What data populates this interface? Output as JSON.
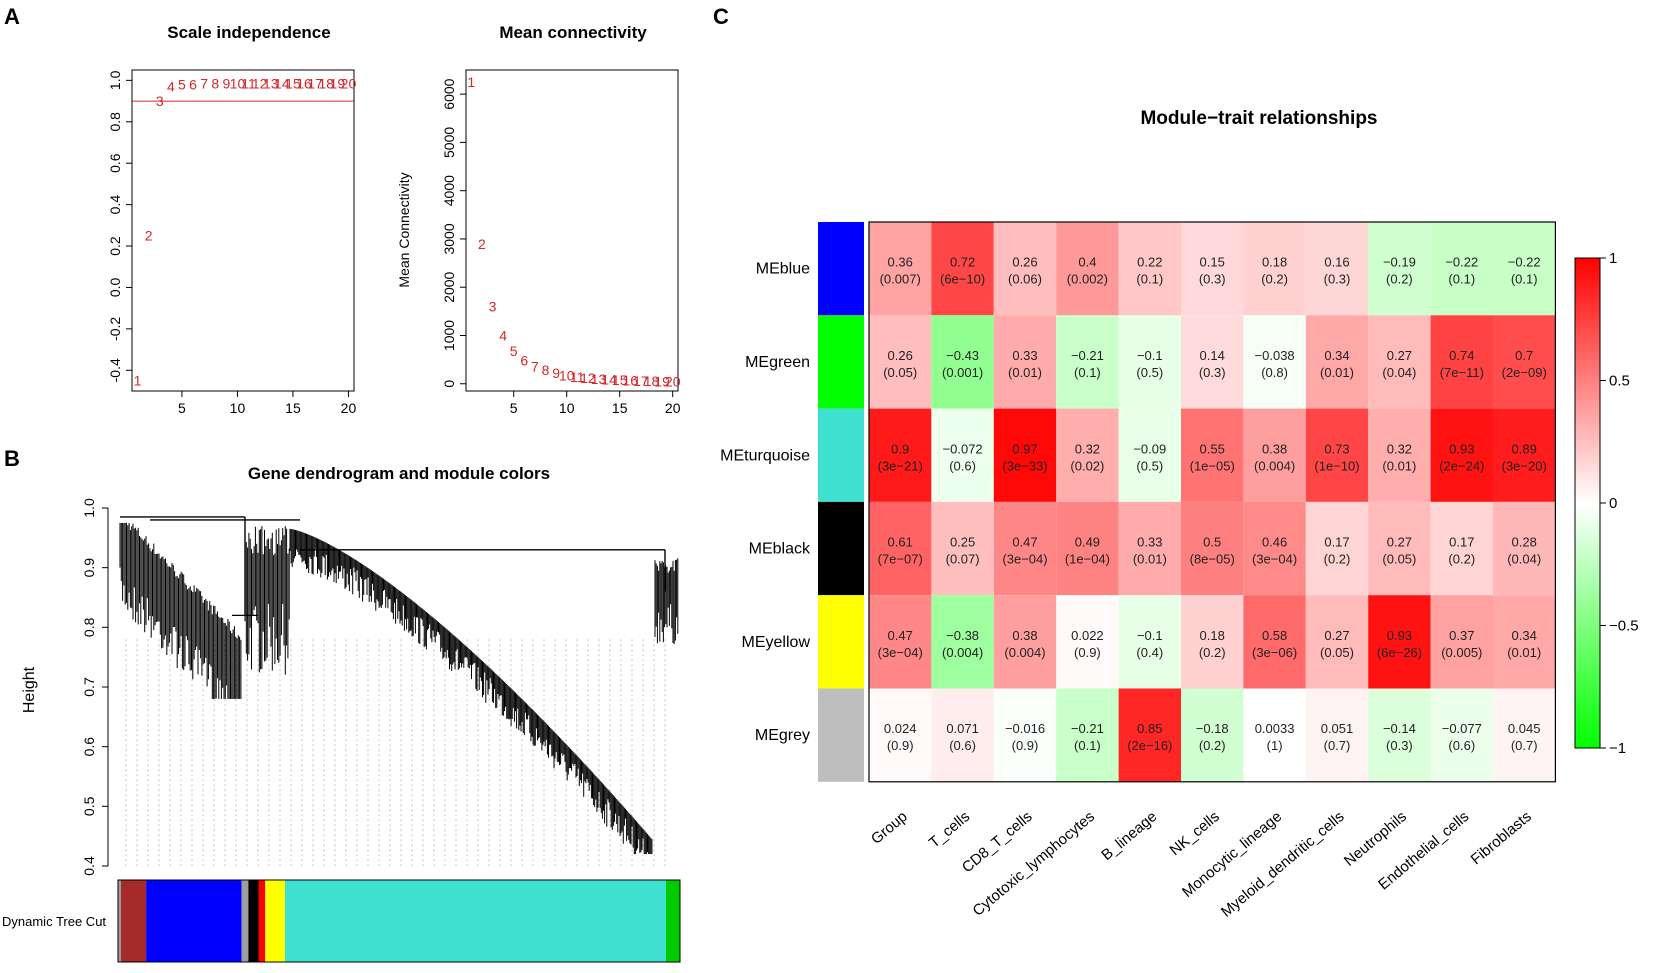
{
  "panels": {
    "a": "A",
    "b": "B",
    "c": "C"
  },
  "chart_data": [
    {
      "id": "scale_independence",
      "type": "scatter",
      "title": "Scale independence",
      "xlabel": "",
      "ylabel": "",
      "xlim": [
        0.5,
        20.5
      ],
      "ylim": [
        -0.5,
        1.05
      ],
      "x_ticks": [
        "5",
        "10",
        "15",
        "20"
      ],
      "y_ticks": [
        "-0.4",
        "-0.2",
        "0.0",
        "0.2",
        "0.4",
        "0.6",
        "0.8",
        "1.0"
      ],
      "x_tick_values": [
        5,
        10,
        15,
        20
      ],
      "y_tick_values": [
        -0.4,
        -0.2,
        0,
        0.2,
        0.4,
        0.6,
        0.8,
        1.0
      ],
      "threshold": 0.9,
      "points": [
        {
          "x": 1,
          "y": -0.45,
          "label": "1"
        },
        {
          "x": 2,
          "y": 0.25,
          "label": "2"
        },
        {
          "x": 3,
          "y": 0.9,
          "label": "3"
        },
        {
          "x": 4,
          "y": 0.97,
          "label": "4"
        },
        {
          "x": 5,
          "y": 0.98,
          "label": "5"
        },
        {
          "x": 6,
          "y": 0.98,
          "label": "6"
        },
        {
          "x": 7,
          "y": 0.985,
          "label": "7"
        },
        {
          "x": 8,
          "y": 0.985,
          "label": "8"
        },
        {
          "x": 9,
          "y": 0.985,
          "label": "9"
        },
        {
          "x": 10,
          "y": 0.985,
          "label": "10"
        },
        {
          "x": 11,
          "y": 0.985,
          "label": "11"
        },
        {
          "x": 12,
          "y": 0.985,
          "label": "12"
        },
        {
          "x": 13,
          "y": 0.985,
          "label": "13"
        },
        {
          "x": 14,
          "y": 0.985,
          "label": "14"
        },
        {
          "x": 15,
          "y": 0.985,
          "label": "15"
        },
        {
          "x": 16,
          "y": 0.985,
          "label": "16"
        },
        {
          "x": 17,
          "y": 0.985,
          "label": "17"
        },
        {
          "x": 18,
          "y": 0.985,
          "label": "18"
        },
        {
          "x": 19,
          "y": 0.985,
          "label": "19"
        },
        {
          "x": 20,
          "y": 0.985,
          "label": "20"
        }
      ]
    },
    {
      "id": "mean_connectivity",
      "type": "scatter",
      "title": "Mean connectivity",
      "xlabel": "",
      "ylabel": "Mean Connectivity",
      "xlim": [
        0.5,
        20.5
      ],
      "ylim": [
        -150,
        6500
      ],
      "x_ticks": [
        "5",
        "10",
        "15",
        "20"
      ],
      "y_ticks": [
        "0",
        "1000",
        "2000",
        "3000",
        "4000",
        "5000",
        "6000"
      ],
      "x_tick_values": [
        5,
        10,
        15,
        20
      ],
      "y_tick_values": [
        0,
        1000,
        2000,
        3000,
        4000,
        5000,
        6000
      ],
      "points": [
        {
          "x": 1,
          "y": 6250,
          "label": "1"
        },
        {
          "x": 2,
          "y": 2900,
          "label": "2"
        },
        {
          "x": 3,
          "y": 1600,
          "label": "3"
        },
        {
          "x": 4,
          "y": 1000,
          "label": "4"
        },
        {
          "x": 5,
          "y": 680,
          "label": "5"
        },
        {
          "x": 6,
          "y": 480,
          "label": "6"
        },
        {
          "x": 7,
          "y": 360,
          "label": "7"
        },
        {
          "x": 8,
          "y": 280,
          "label": "8"
        },
        {
          "x": 9,
          "y": 220,
          "label": "9"
        },
        {
          "x": 10,
          "y": 170,
          "label": "10"
        },
        {
          "x": 11,
          "y": 140,
          "label": "11"
        },
        {
          "x": 12,
          "y": 120,
          "label": "12"
        },
        {
          "x": 13,
          "y": 100,
          "label": "13"
        },
        {
          "x": 14,
          "y": 90,
          "label": "14"
        },
        {
          "x": 15,
          "y": 80,
          "label": "15"
        },
        {
          "x": 16,
          "y": 70,
          "label": "16"
        },
        {
          "x": 17,
          "y": 60,
          "label": "17"
        },
        {
          "x": 18,
          "y": 55,
          "label": "18"
        },
        {
          "x": 19,
          "y": 50,
          "label": "19"
        },
        {
          "x": 20,
          "y": 45,
          "label": "20"
        }
      ]
    },
    {
      "id": "gene_dendrogram",
      "type": "dendrogram",
      "title": "Gene dendrogram and module colors",
      "ylabel": "Height",
      "ylim": [
        0.4,
        1.0
      ],
      "y_ticks": [
        "0.4",
        "0.5",
        "0.6",
        "0.7",
        "0.8",
        "0.9",
        "1.0"
      ],
      "y_tick_values": [
        0.4,
        0.5,
        0.6,
        0.7,
        0.8,
        0.9,
        1.0
      ],
      "color_bar_label": "Dynamic Tree Cut",
      "module_segments": [
        {
          "module": "grey",
          "color": "#9e9e9e",
          "share": 0.005
        },
        {
          "module": "brown",
          "color": "#a52a2a",
          "share": 0.045
        },
        {
          "module": "blue",
          "color": "#0000ff",
          "share": 0.17
        },
        {
          "module": "grey",
          "color": "#9e9e9e",
          "share": 0.012
        },
        {
          "module": "black",
          "color": "#000000",
          "share": 0.018
        },
        {
          "module": "red",
          "color": "#ff0000",
          "share": 0.012
        },
        {
          "module": "yellow",
          "color": "#ffff00",
          "share": 0.035
        },
        {
          "module": "turquoise",
          "color": "#40e0d0",
          "share": 0.678
        },
        {
          "module": "green",
          "color": "#00cc00",
          "share": 0.025
        }
      ]
    },
    {
      "id": "module_trait",
      "type": "heatmap",
      "title": "Module−trait relationships",
      "rows": [
        "MEblue",
        "MEgreen",
        "MEturquoise",
        "MEblack",
        "MEyellow",
        "MEgrey"
      ],
      "row_colors": [
        "#0000ff",
        "#00ff00",
        "#40e0d0",
        "#000000",
        "#ffff00",
        "#bebebe"
      ],
      "columns": [
        "Group",
        "T_cells",
        "CD8_T_cells",
        "Cytotoxic_lymphocytes",
        "B_lineage",
        "NK_cells",
        "Monocytic_lineage",
        "Myeloid_dendritic_cells",
        "Neutrophils",
        "Endothelial_cells",
        "Fibroblasts"
      ],
      "values": [
        [
          0.36,
          0.72,
          0.26,
          0.4,
          0.22,
          0.15,
          0.18,
          0.16,
          -0.19,
          -0.22,
          -0.22
        ],
        [
          0.26,
          -0.43,
          0.33,
          -0.21,
          -0.1,
          0.14,
          -0.038,
          0.34,
          0.27,
          0.74,
          0.7
        ],
        [
          0.9,
          -0.072,
          0.97,
          0.32,
          -0.09,
          0.55,
          0.38,
          0.73,
          0.32,
          0.93,
          0.89
        ],
        [
          0.61,
          0.25,
          0.47,
          0.49,
          0.33,
          0.5,
          0.46,
          0.17,
          0.27,
          0.17,
          0.28
        ],
        [
          0.47,
          -0.38,
          0.38,
          0.022,
          -0.1,
          0.18,
          0.58,
          0.27,
          0.93,
          0.37,
          0.34
        ],
        [
          0.024,
          0.071,
          -0.016,
          -0.21,
          0.85,
          -0.18,
          0.0033,
          0.051,
          -0.14,
          -0.077,
          0.045
        ]
      ],
      "labels": [
        [
          "0.36",
          "0.72",
          "0.26",
          "0.4",
          "0.22",
          "0.15",
          "0.18",
          "0.16",
          "−0.19",
          "−0.22",
          "−0.22"
        ],
        [
          "0.26",
          "−0.43",
          "0.33",
          "−0.21",
          "−0.1",
          "0.14",
          "−0.038",
          "0.34",
          "0.27",
          "0.74",
          "0.7"
        ],
        [
          "0.9",
          "−0.072",
          "0.97",
          "0.32",
          "−0.09",
          "0.55",
          "0.38",
          "0.73",
          "0.32",
          "0.93",
          "0.89"
        ],
        [
          "0.61",
          "0.25",
          "0.47",
          "0.49",
          "0.33",
          "0.5",
          "0.46",
          "0.17",
          "0.27",
          "0.17",
          "0.28"
        ],
        [
          "0.47",
          "−0.38",
          "0.38",
          "0.022",
          "−0.1",
          "0.18",
          "0.58",
          "0.27",
          "0.93",
          "0.37",
          "0.34"
        ],
        [
          "0.024",
          "0.071",
          "−0.016",
          "−0.21",
          "0.85",
          "−0.18",
          "0.0033",
          "0.051",
          "−0.14",
          "−0.077",
          "0.045"
        ]
      ],
      "pvalues": [
        [
          "(0.007)",
          "(6e−10)",
          "(0.06)",
          "(0.002)",
          "(0.1)",
          "(0.3)",
          "(0.2)",
          "(0.3)",
          "(0.2)",
          "(0.1)",
          "(0.1)"
        ],
        [
          "(0.05)",
          "(0.001)",
          "(0.01)",
          "(0.1)",
          "(0.5)",
          "(0.3)",
          "(0.8)",
          "(0.01)",
          "(0.04)",
          "(7e−11)",
          "(2e−09)"
        ],
        [
          "(3e−21)",
          "(0.6)",
          "(3e−33)",
          "(0.02)",
          "(0.5)",
          "(1e−05)",
          "(0.004)",
          "(1e−10)",
          "(0.01)",
          "(2e−24)",
          "(3e−20)"
        ],
        [
          "(7e−07)",
          "(0.07)",
          "(3e−04)",
          "(1e−04)",
          "(0.01)",
          "(8e−05)",
          "(3e−04)",
          "(0.2)",
          "(0.05)",
          "(0.2)",
          "(0.04)"
        ],
        [
          "(3e−04)",
          "(0.004)",
          "(0.004)",
          "(0.9)",
          "(0.4)",
          "(0.2)",
          "(3e−06)",
          "(0.05)",
          "(6e−26)",
          "(0.005)",
          "(0.01)"
        ],
        [
          "(0.9)",
          "(0.6)",
          "(0.9)",
          "(0.1)",
          "(2e−16)",
          "(0.2)",
          "(1)",
          "(0.7)",
          "(0.3)",
          "(0.6)",
          "(0.7)"
        ]
      ],
      "legend_ticks": [
        "1",
        "0.5",
        "0",
        "−0.5",
        "−1"
      ],
      "legend_tick_values": [
        1,
        0.5,
        0,
        -0.5,
        -1
      ],
      "color_scale": {
        "neg": "#00ff00",
        "mid": "#ffffff",
        "pos": "#ff0000"
      }
    }
  ]
}
